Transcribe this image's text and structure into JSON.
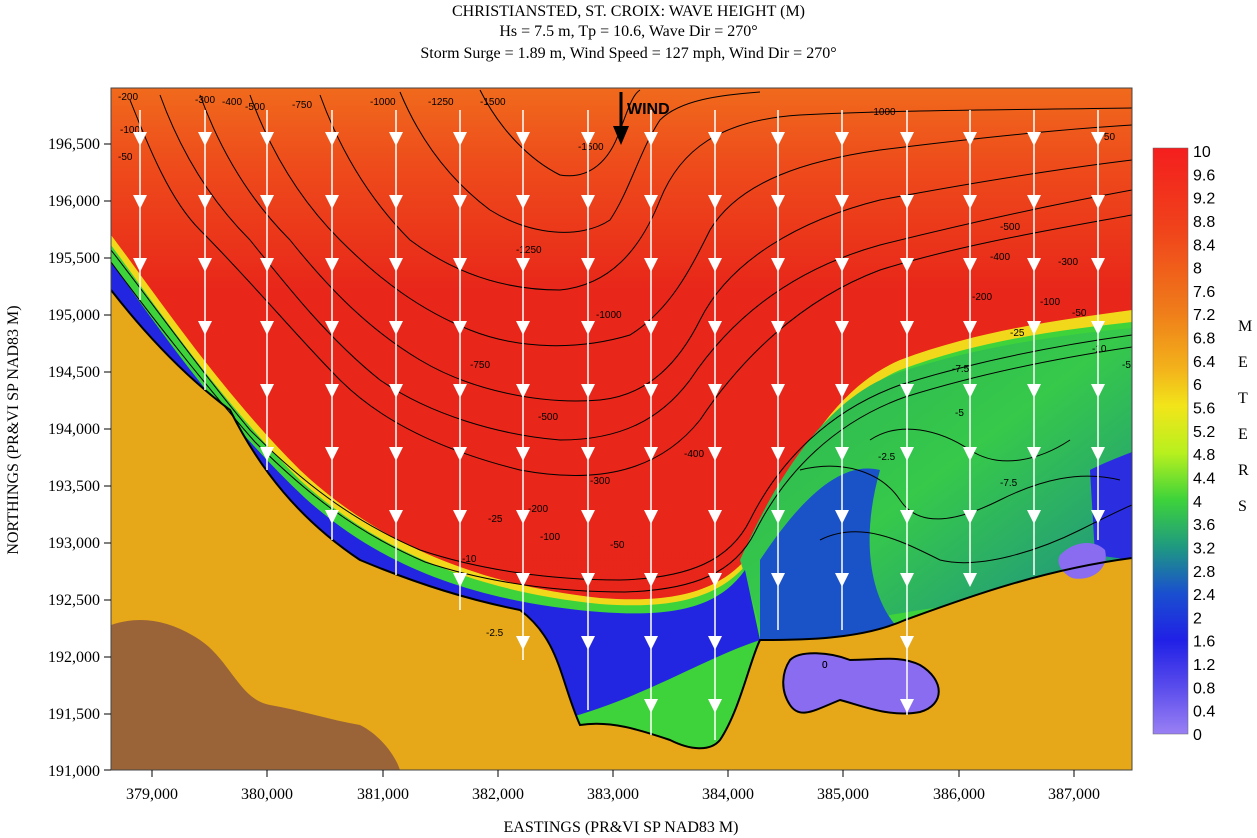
{
  "title": {
    "line1": "CHRISTIANSTED, ST. CROIX: WAVE HEIGHT (M)",
    "line2": "Hs = 7.5 m, Tp = 10.6, Wave Dir = 270°",
    "line3": "Storm Surge = 1.89 m, Wind Speed = 127 mph, Wind Dir = 270°"
  },
  "axes": {
    "xlabel": "EASTINGS (PR&VI SP NAD83 M)",
    "ylabel": "NORTHINGS (PR&VI SP NAD83 M)",
    "x_ticks": [
      "379,000",
      "380,000",
      "381,000",
      "382,000",
      "383,000",
      "384,000",
      "385,000",
      "386,000",
      "387,000"
    ],
    "y_ticks": [
      "196,500",
      "196,000",
      "195,500",
      "195,000",
      "194,500",
      "194,000",
      "193,500",
      "193,000",
      "192,500",
      "192,000",
      "191,500",
      "191,000"
    ]
  },
  "wind_label": "WIND",
  "colorbar": {
    "labels": [
      "10",
      "9.6",
      "9.2",
      "8.8",
      "8.4",
      "8",
      "7.6",
      "7.2",
      "6.8",
      "6.4",
      "6",
      "5.6",
      "5.2",
      "4.8",
      "4.4",
      "4",
      "3.6",
      "3.2",
      "2.8",
      "2.4",
      "2",
      "1.6",
      "1.2",
      "0.8",
      "0.4",
      "0"
    ],
    "units_letters": [
      "M",
      "E",
      "T",
      "E",
      "R",
      "S"
    ]
  },
  "contour_labels": [
    "-200",
    "-300",
    "-100",
    "-50",
    "-400",
    "-500",
    "-750",
    "-1000",
    "-1250",
    "-1500",
    "-1500",
    "-1250",
    "-1000",
    "-750",
    "-500",
    "-400",
    "-300",
    "-200",
    "-100",
    "-50",
    "-25",
    "-10",
    "-7.5",
    "-5",
    "-2.5",
    "0",
    "-1000",
    "-750",
    "-300",
    "-400",
    "-500",
    "-200",
    "-100",
    "-50",
    "-25",
    "-10",
    "-5",
    "-7.5",
    "-2.5",
    "0"
  ],
  "colors": {
    "deep_red": "#e8251a",
    "orange": "#f0561c",
    "yellow": "#f2e21a",
    "green": "#3ed33a",
    "blue": "#2a23e0",
    "lavender": "#8a6cf0",
    "land_gold": "#e6a818",
    "land_brown": "#9a6438"
  }
}
